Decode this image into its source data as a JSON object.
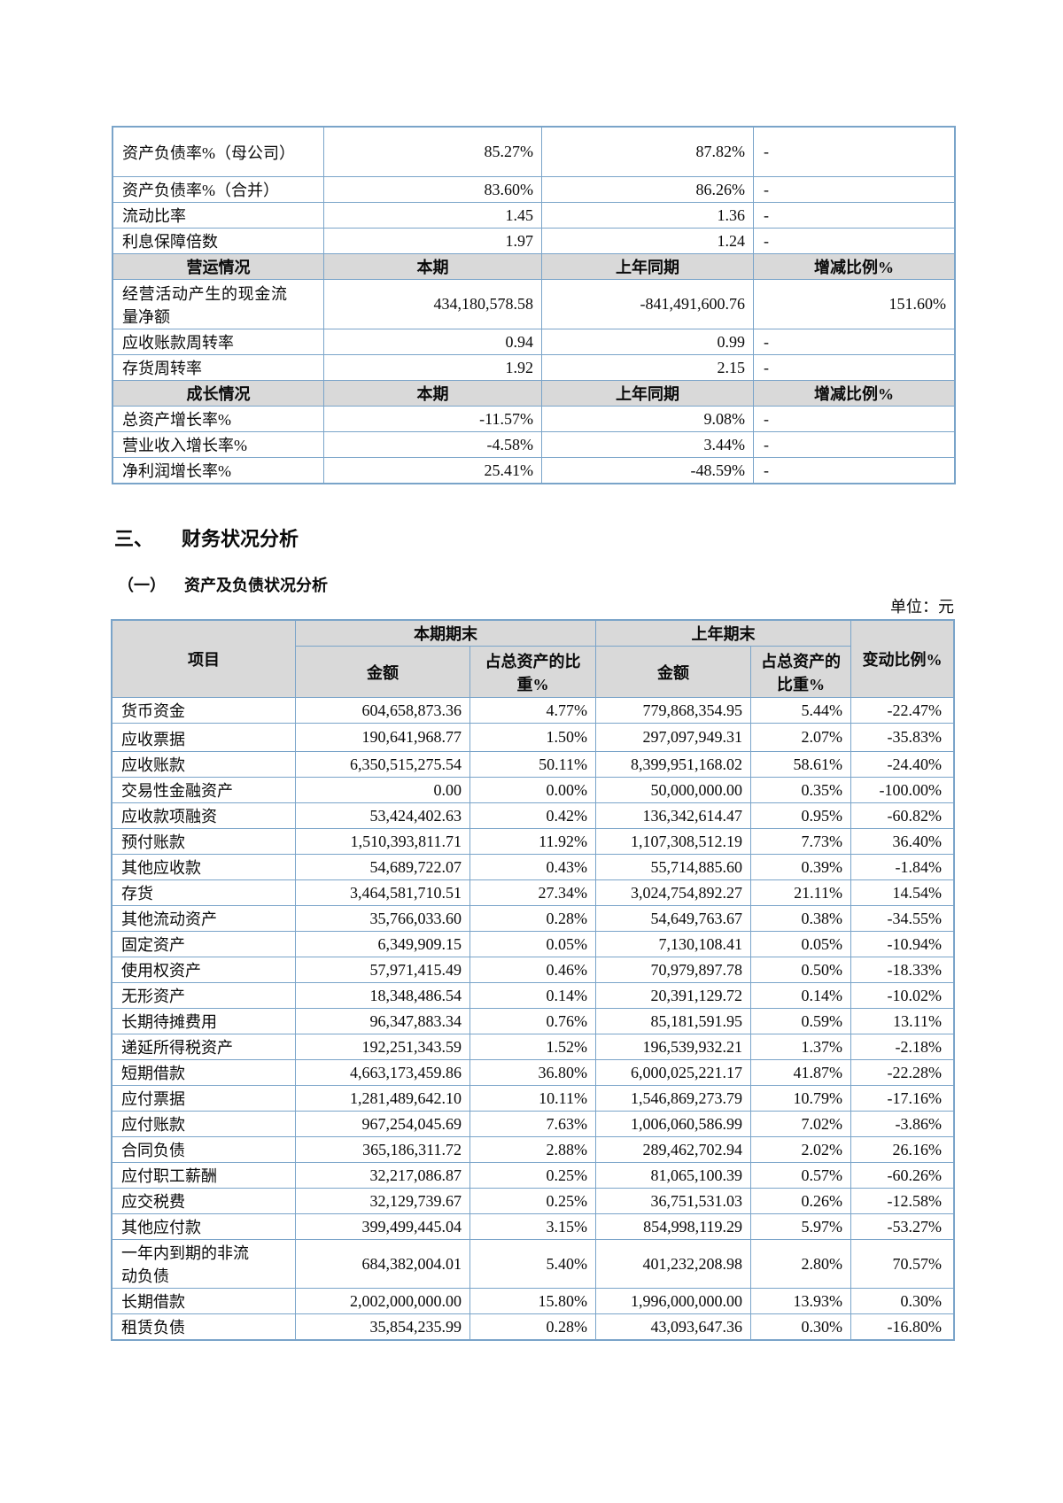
{
  "page": {
    "unit_label": "单位：元"
  },
  "section": {
    "number": "三、",
    "title": "财务状况分析",
    "sub_number": "（一）",
    "sub_title": "资产及负债状况分析"
  },
  "table1": {
    "rows": [
      {
        "type": "data",
        "h2": true,
        "label": "资产负债率%（母公司）",
        "current": "85.27%",
        "prior": "87.82%",
        "change": "-"
      },
      {
        "type": "data",
        "label": "资产负债率%（合并）",
        "current": "83.60%",
        "prior": "86.26%",
        "change": "-"
      },
      {
        "type": "data",
        "label": "流动比率",
        "current": "1.45",
        "prior": "1.36",
        "change": "-"
      },
      {
        "type": "data",
        "label": "利息保障倍数",
        "current": "1.97",
        "prior": "1.24",
        "change": "-"
      },
      {
        "type": "header",
        "label": "营运情况",
        "current": "本期",
        "prior": "上年同期",
        "change": "增减比例%"
      },
      {
        "type": "data",
        "h2": true,
        "label": "经营活动产生的现金流量净额",
        "current": "434,180,578.58",
        "prior": "-841,491,600.76",
        "change": "151.60%"
      },
      {
        "type": "data",
        "label": "应收账款周转率",
        "current": "0.94",
        "prior": "0.99",
        "change": "-"
      },
      {
        "type": "data",
        "label": "存货周转率",
        "current": "1.92",
        "prior": "2.15",
        "change": "-"
      },
      {
        "type": "header",
        "label": "成长情况",
        "current": "本期",
        "prior": "上年同期",
        "change": "增减比例%"
      },
      {
        "type": "data",
        "label": "总资产增长率%",
        "current": "-11.57%",
        "prior": "9.08%",
        "change": "-"
      },
      {
        "type": "data",
        "label": "营业收入增长率%",
        "current": "-4.58%",
        "prior": "3.44%",
        "change": "-"
      },
      {
        "type": "data",
        "label": "净利润增长率%",
        "current": "25.41%",
        "prior": "-48.59%",
        "change": "-"
      }
    ]
  },
  "table2": {
    "header": {
      "item": "项目",
      "current_period": "本期期末",
      "prior_period": "上年期末",
      "amount": "金额",
      "pct_of_assets": "占总资产的比重%",
      "amount_prior": "金额",
      "pct_of_assets_prior": "占总资产的比重%",
      "change": "变动比例%"
    },
    "rows": [
      {
        "item": "货币资金",
        "amount": "604,658,873.36",
        "pct": "4.77%",
        "prior_amount": "779,868,354.95",
        "prior_pct": "5.44%",
        "change": "-22.47%"
      },
      {
        "item": "应收票据",
        "tall": true,
        "amount": "190,641,968.77",
        "pct": "1.50%",
        "prior_amount": "297,097,949.31",
        "prior_pct": "2.07%",
        "change": "-35.83%"
      },
      {
        "item": "应收账款",
        "amount": "6,350,515,275.54",
        "pct": "50.11%",
        "prior_amount": "8,399,951,168.02",
        "prior_pct": "58.61%",
        "change": "-24.40%"
      },
      {
        "item": "交易性金融资产",
        "amount": "0.00",
        "pct": "0.00%",
        "prior_amount": "50,000,000.00",
        "prior_pct": "0.35%",
        "change": "-100.00%"
      },
      {
        "item": "应收款项融资",
        "amount": "53,424,402.63",
        "pct": "0.42%",
        "prior_amount": "136,342,614.47",
        "prior_pct": "0.95%",
        "change": "-60.82%"
      },
      {
        "item": "预付账款",
        "amount": "1,510,393,811.71",
        "pct": "11.92%",
        "prior_amount": "1,107,308,512.19",
        "prior_pct": "7.73%",
        "change": "36.40%"
      },
      {
        "item": "其他应收款",
        "amount": "54,689,722.07",
        "pct": "0.43%",
        "prior_amount": "55,714,885.60",
        "prior_pct": "0.39%",
        "change": "-1.84%"
      },
      {
        "item": "存货",
        "amount": "3,464,581,710.51",
        "pct": "27.34%",
        "prior_amount": "3,024,754,892.27",
        "prior_pct": "21.11%",
        "change": "14.54%"
      },
      {
        "item": "其他流动资产",
        "amount": "35,766,033.60",
        "pct": "0.28%",
        "prior_amount": "54,649,763.67",
        "prior_pct": "0.38%",
        "change": "-34.55%"
      },
      {
        "item": "固定资产",
        "amount": "6,349,909.15",
        "pct": "0.05%",
        "prior_amount": "7,130,108.41",
        "prior_pct": "0.05%",
        "change": "-10.94%"
      },
      {
        "item": "使用权资产",
        "amount": "57,971,415.49",
        "pct": "0.46%",
        "prior_amount": "70,979,897.78",
        "prior_pct": "0.50%",
        "change": "-18.33%"
      },
      {
        "item": "无形资产",
        "amount": "18,348,486.54",
        "pct": "0.14%",
        "prior_amount": "20,391,129.72",
        "prior_pct": "0.14%",
        "change": "-10.02%"
      },
      {
        "item": "长期待摊费用",
        "amount": "96,347,883.34",
        "pct": "0.76%",
        "prior_amount": "85,181,591.95",
        "prior_pct": "0.59%",
        "change": "13.11%"
      },
      {
        "item": "递延所得税资产",
        "amount": "192,251,343.59",
        "pct": "1.52%",
        "prior_amount": "196,539,932.21",
        "prior_pct": "1.37%",
        "change": "-2.18%"
      },
      {
        "item": "短期借款",
        "amount": "4,663,173,459.86",
        "pct": "36.80%",
        "prior_amount": "6,000,025,221.17",
        "prior_pct": "41.87%",
        "change": "-22.28%"
      },
      {
        "item": "应付票据",
        "amount": "1,281,489,642.10",
        "pct": "10.11%",
        "prior_amount": "1,546,869,273.79",
        "prior_pct": "10.79%",
        "change": "-17.16%"
      },
      {
        "item": "应付账款",
        "amount": "967,254,045.69",
        "pct": "7.63%",
        "prior_amount": "1,006,060,586.99",
        "prior_pct": "7.02%",
        "change": "-3.86%"
      },
      {
        "item": "合同负债",
        "amount": "365,186,311.72",
        "pct": "2.88%",
        "prior_amount": "289,462,702.94",
        "prior_pct": "2.02%",
        "change": "26.16%"
      },
      {
        "item": "应付职工薪酬",
        "amount": "32,217,086.87",
        "pct": "0.25%",
        "prior_amount": "81,065,100.39",
        "prior_pct": "0.57%",
        "change": "-60.26%"
      },
      {
        "item": "应交税费",
        "amount": "32,129,739.67",
        "pct": "0.25%",
        "prior_amount": "36,751,531.03",
        "prior_pct": "0.26%",
        "change": "-12.58%"
      },
      {
        "item": "其他应付款",
        "amount": "399,499,445.04",
        "pct": "3.15%",
        "prior_amount": "854,998,119.29",
        "prior_pct": "5.97%",
        "change": "-53.27%"
      },
      {
        "item": "一年内到期的非流动负债",
        "h2": true,
        "amount": "684,382,004.01",
        "pct": "5.40%",
        "prior_amount": "401,232,208.98",
        "prior_pct": "2.80%",
        "change": "70.57%"
      },
      {
        "item": "长期借款",
        "amount": "2,002,000,000.00",
        "pct": "15.80%",
        "prior_amount": "1,996,000,000.00",
        "prior_pct": "13.93%",
        "change": "0.30%"
      },
      {
        "item": "租赁负债",
        "amount": "35,854,235.99",
        "pct": "0.28%",
        "prior_amount": "43,093,647.36",
        "prior_pct": "0.30%",
        "change": "-16.80%"
      }
    ]
  }
}
